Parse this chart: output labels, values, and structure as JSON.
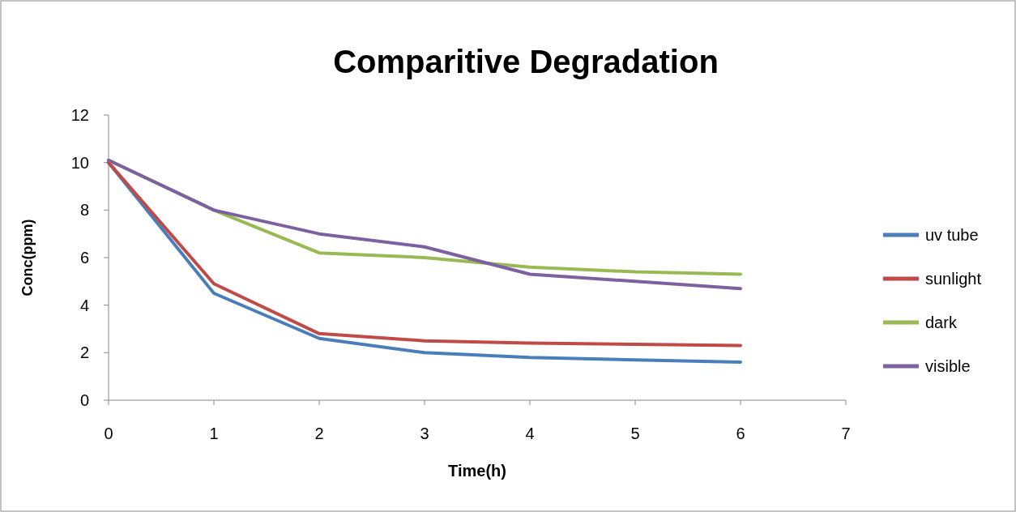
{
  "chart_data": {
    "type": "line",
    "title": "Comparitive Degradation",
    "xlabel": "Time(h)",
    "ylabel": "Conc(ppm)",
    "x": [
      0,
      1,
      2,
      3,
      4,
      5,
      6
    ],
    "xlim": [
      0,
      7
    ],
    "xticks": [
      0,
      1,
      2,
      3,
      4,
      5,
      6,
      7
    ],
    "ylim": [
      0,
      12
    ],
    "yticks": [
      0,
      2,
      4,
      6,
      8,
      10,
      12
    ],
    "grid": false,
    "legend": "right",
    "marker": "none",
    "line_style": "solid",
    "series": [
      {
        "name": "uv tube",
        "color": "#4a7ebb",
        "values": [
          10,
          4.5,
          2.6,
          2,
          1.8,
          1.7,
          1.6
        ]
      },
      {
        "name": "sunlight",
        "color": "#be4b48",
        "values": [
          10,
          4.9,
          2.8,
          2.5,
          2.4,
          2.35,
          2.3
        ]
      },
      {
        "name": "dark",
        "color": "#98b954",
        "values": [
          10.1,
          8,
          6.2,
          6,
          5.6,
          5.4,
          5.3
        ]
      },
      {
        "name": "visible",
        "color": "#7d60a0",
        "values": [
          10.1,
          8,
          7,
          6.45,
          5.3,
          5,
          4.7
        ]
      }
    ]
  }
}
